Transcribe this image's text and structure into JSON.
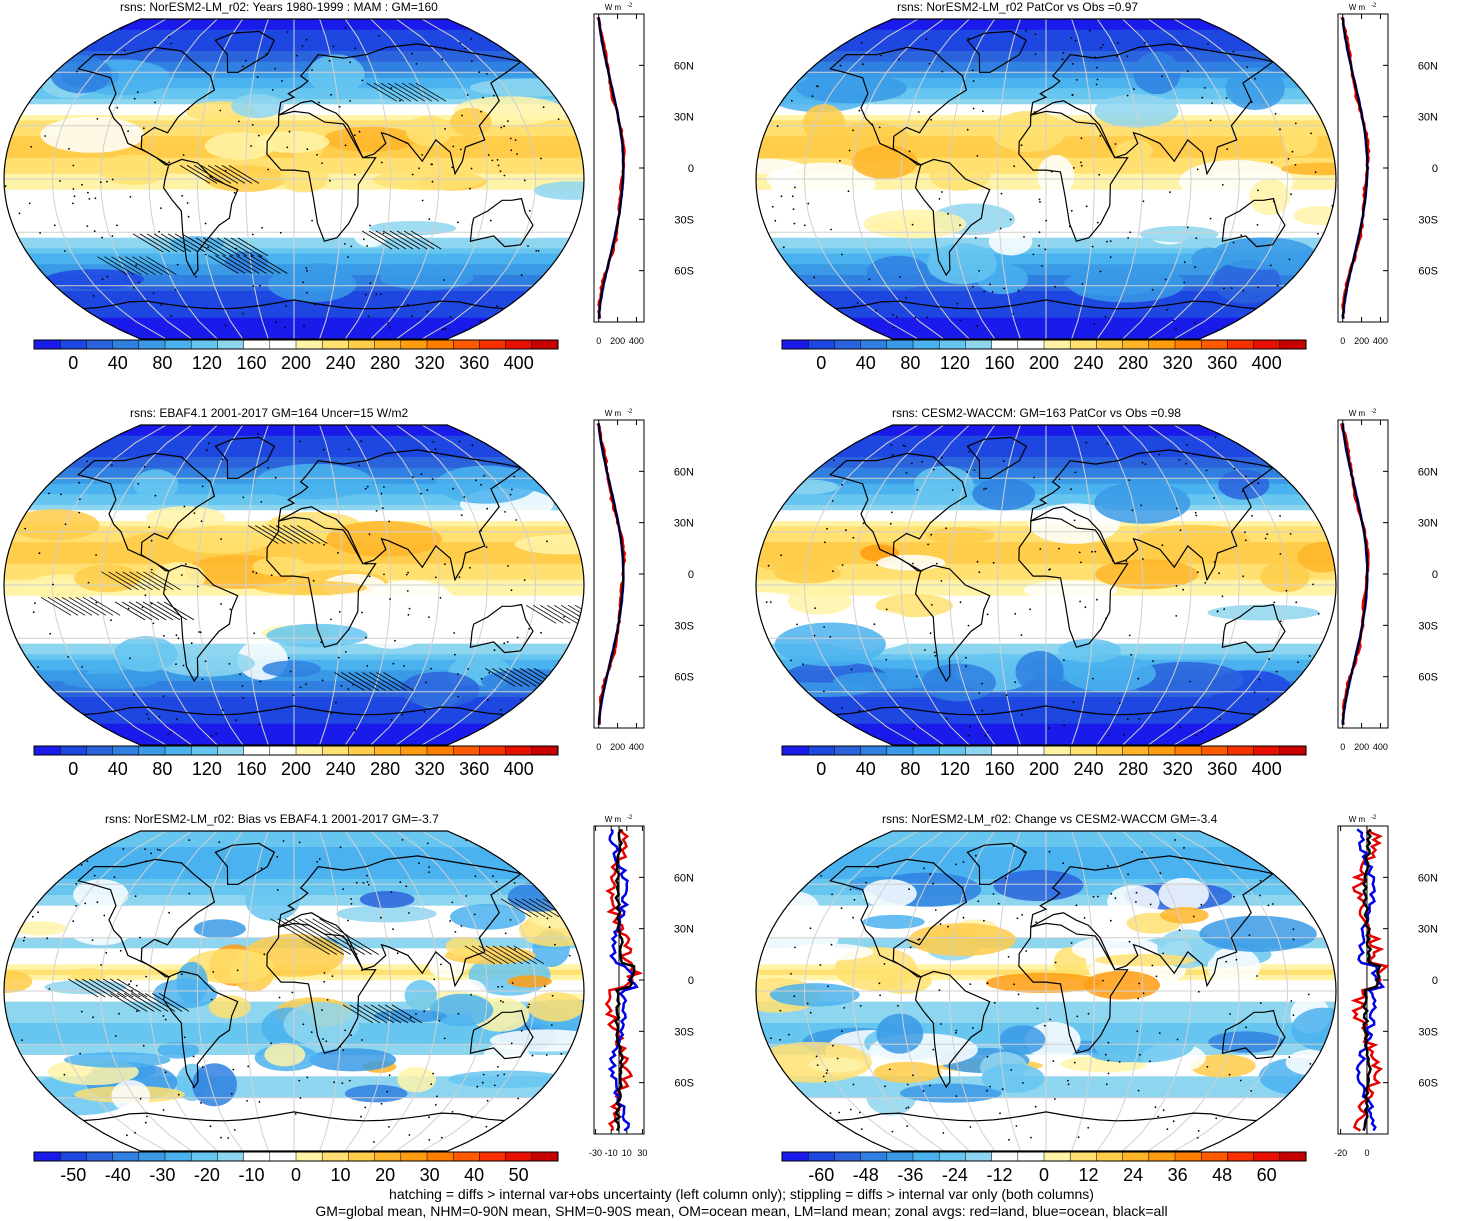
{
  "panels": [
    {
      "id": "p1",
      "title": "rsns: NorESM2-LM_r02: Years 1980-1999 : MAM : GM=160",
      "palette": "abs",
      "pattern": "hatch",
      "colorbar_ticks": [
        "0",
        "40",
        "80",
        "120",
        "160",
        "200",
        "240",
        "280",
        "320",
        "360",
        "400"
      ],
      "zonal_ticks": [
        "0",
        "200",
        "400"
      ],
      "zonal_xlim": [
        -50,
        480
      ]
    },
    {
      "id": "p2",
      "title": "rsns: NorESM2-LM_r02 PatCor vs Obs =0.97",
      "palette": "abs",
      "pattern": "stipple",
      "colorbar_ticks": [
        "0",
        "40",
        "80",
        "120",
        "160",
        "200",
        "240",
        "280",
        "320",
        "360",
        "400"
      ],
      "zonal_ticks": [
        "0",
        "200",
        "400"
      ],
      "zonal_xlim": [
        -50,
        480
      ]
    },
    {
      "id": "p3",
      "title": "rsns: EBAF4.1 2001-2017 GM=164 Uncer=15 W/m2",
      "palette": "abs",
      "pattern": "hatch",
      "colorbar_ticks": [
        "0",
        "40",
        "80",
        "120",
        "160",
        "200",
        "240",
        "280",
        "320",
        "360",
        "400"
      ],
      "zonal_ticks": [
        "0",
        "200",
        "400"
      ],
      "zonal_xlim": [
        -50,
        480
      ]
    },
    {
      "id": "p4",
      "title": "rsns: CESM2-WACCM: GM=163 PatCor vs Obs =0.98",
      "palette": "abs",
      "pattern": "stipple",
      "colorbar_ticks": [
        "0",
        "40",
        "80",
        "120",
        "160",
        "200",
        "240",
        "280",
        "320",
        "360",
        "400"
      ],
      "zonal_ticks": [
        "0",
        "200",
        "400"
      ],
      "zonal_xlim": [
        -50,
        480
      ]
    },
    {
      "id": "p5",
      "title": "rsns: NorESM2-LM_r02: Bias vs EBAF4.1 2001-2017 GM=-3.7",
      "palette": "diff",
      "pattern": "hatch",
      "colorbar_ticks": [
        "-50",
        "-40",
        "-30",
        "-20",
        "-10",
        "0",
        "10",
        "20",
        "30",
        "40",
        "50"
      ],
      "zonal_ticks": [
        "-30",
        "-10",
        "10",
        "30"
      ],
      "zonal_xlim": [
        -32,
        32
      ]
    },
    {
      "id": "p6",
      "title": "rsns: NorESM2-LM_r02: Change vs CESM2-WACCM GM=-3.4",
      "palette": "diff",
      "pattern": "stipple",
      "colorbar_ticks": [
        "-60",
        "-48",
        "-36",
        "-24",
        "-12",
        "0",
        "12",
        "24",
        "36",
        "48",
        "60"
      ],
      "zonal_ticks": [
        "-20",
        "0"
      ],
      "zonal_xlim": [
        -22,
        16
      ]
    }
  ],
  "lat_ticks": [
    "60N",
    "30N",
    "0",
    "30S",
    "60S"
  ],
  "zonal_unit": "W m",
  "zonal_unit_exp": "-2",
  "palettes": {
    "abs": [
      "#1a1aeb",
      "#1e46e0",
      "#2a63dc",
      "#2f80e0",
      "#3a9ae6",
      "#4ab2ee",
      "#66c6f0",
      "#8ed6f0",
      "#ffffff",
      "#ffffff",
      "#fff3a8",
      "#ffe070",
      "#ffcd4a",
      "#ffb52a",
      "#ff9c10",
      "#ff7e00",
      "#ff5a00",
      "#f83000",
      "#e81000",
      "#c80000"
    ],
    "diff": [
      "#1a1aeb",
      "#1e46e0",
      "#2a63dc",
      "#2f80e0",
      "#3a9ae6",
      "#4ab2ee",
      "#66c6f0",
      "#8ed6f0",
      "#ffffff",
      "#ffffff",
      "#fff3a8",
      "#ffe070",
      "#ffcd4a",
      "#ffb52a",
      "#ff9c10",
      "#ff7e00",
      "#ff5a00",
      "#f83000",
      "#e81000",
      "#c80000"
    ]
  },
  "footer": {
    "line1": "hatching = diffs > internal var+obs uncertainty (left column only); stippling = diffs > internal var only (both columns)",
    "line2": "GM=global mean, NHM=0-90N mean, SHM=0-90S mean, OM=ocean mean, LM=land mean; zonal avgs: red=land, blue=ocean, black=all"
  }
}
